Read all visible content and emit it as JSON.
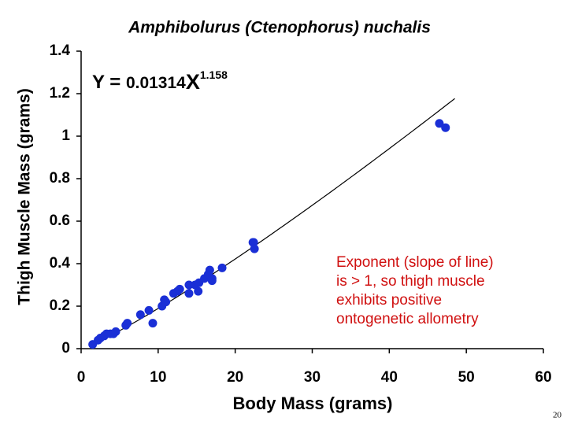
{
  "chart_data": {
    "type": "scatter",
    "title": "Amphibolurus (Ctenophorus) nuchalis",
    "xlabel": "Body Mass (grams)",
    "ylabel": "Thigh Muscle Mass (grams)",
    "equation": {
      "lhs": "Y = ",
      "coefficient": 0.01314,
      "variable": "X",
      "exponent": 1.158
    },
    "fit_xlim": [
      1,
      48.5
    ],
    "annotation": [
      "Exponent (slope of line)",
      "is > 1, so thigh muscle",
      "exhibits positive",
      "ontogenetic allometry"
    ],
    "x": [
      1.5,
      2.2,
      2.5,
      3,
      3.3,
      3.8,
      4.2,
      4.5,
      5.8,
      6,
      7.7,
      8.8,
      9.3,
      10.5,
      10.8,
      11,
      12,
      12.5,
      12.8,
      14,
      14,
      14.8,
      15.2,
      15.3,
      16,
      16.5,
      16.7,
      17,
      17,
      18.3,
      22.3,
      22.4,
      22.5,
      46.5,
      47.3
    ],
    "y": [
      0.02,
      0.04,
      0.05,
      0.06,
      0.07,
      0.07,
      0.07,
      0.08,
      0.11,
      0.12,
      0.16,
      0.18,
      0.12,
      0.2,
      0.23,
      0.22,
      0.26,
      0.27,
      0.28,
      0.3,
      0.26,
      0.3,
      0.27,
      0.31,
      0.33,
      0.35,
      0.37,
      0.33,
      0.32,
      0.38,
      0.5,
      0.5,
      0.47,
      1.06,
      1.04
    ],
    "color": "#1a2fd6",
    "line_color": "#000000",
    "xlim": [
      0,
      60
    ],
    "xticks": [
      0,
      10,
      20,
      30,
      40,
      50,
      60
    ],
    "ylim": [
      0,
      1.4
    ],
    "yticks": [
      0,
      0.2,
      0.4,
      0.6,
      0.8,
      1,
      1.2,
      1.4
    ],
    "grid": false
  },
  "page_number": 20
}
